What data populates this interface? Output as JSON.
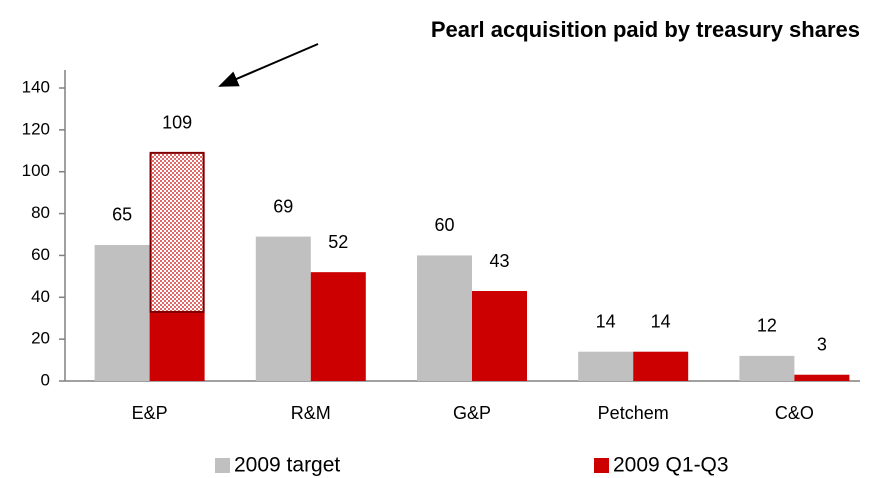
{
  "chart_data": {
    "type": "bar",
    "annotation": {
      "text": "Pearl acquisition paid by treasury shares",
      "category": 0,
      "series": 1,
      "value": 76
    },
    "categories": [
      "E&P",
      "R&M",
      "G&P",
      "Petchem",
      "C&O"
    ],
    "series": [
      {
        "name": "2009 target",
        "color": "#c0c0c0",
        "values": [
          65,
          69,
          60,
          14,
          12
        ]
      },
      {
        "name": "2009 Q1-Q3",
        "color": "#cc0000",
        "values": [
          109,
          52,
          43,
          14,
          3
        ]
      }
    ],
    "ylim": [
      0,
      140
    ],
    "yticks": [
      0,
      20,
      40,
      60,
      80,
      100,
      120,
      140
    ],
    "grid": false,
    "legend": "bottom"
  }
}
